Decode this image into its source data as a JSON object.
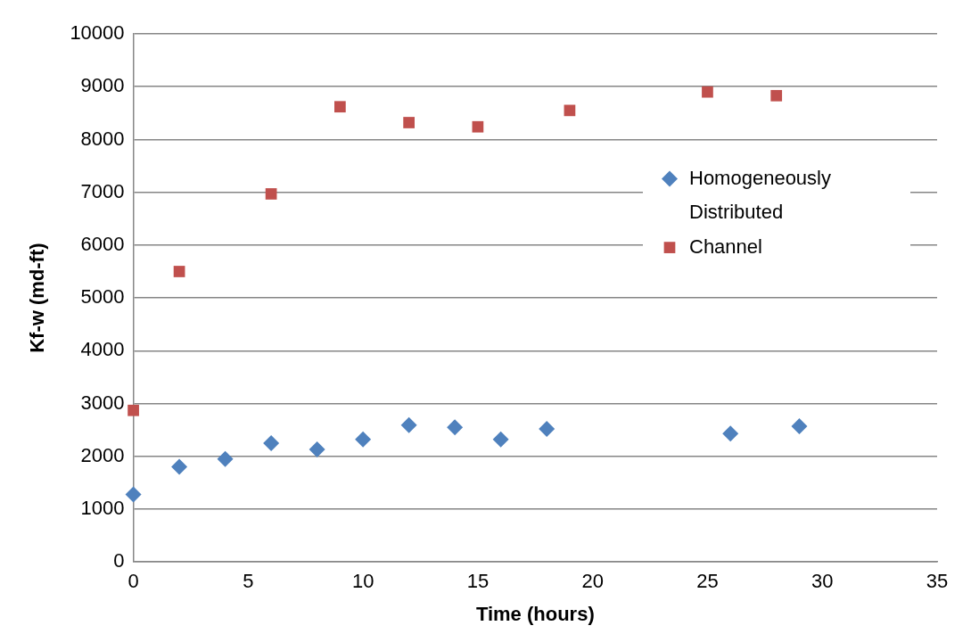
{
  "chart_data": {
    "type": "scatter",
    "xlabel": "Time (hours)",
    "ylabel": "Kf-w (md-ft)",
    "xlim": [
      0,
      35
    ],
    "xticks": [
      0,
      5,
      10,
      15,
      20,
      25,
      30,
      35
    ],
    "ylim": [
      0,
      10000
    ],
    "yticks": [
      0,
      1000,
      2000,
      3000,
      4000,
      5000,
      6000,
      7000,
      8000,
      9000,
      10000
    ],
    "grid": "y",
    "legend": "right",
    "series": [
      {
        "name": "Homogeneously Distributed",
        "color": "#4f81bd",
        "marker": "diamond",
        "x": [
          0,
          2,
          4,
          6,
          8,
          10,
          12,
          14,
          16,
          18,
          26,
          29
        ],
        "values": [
          1280,
          1800,
          1950,
          2250,
          2130,
          2320,
          2590,
          2550,
          2320,
          2520,
          2430,
          2570
        ]
      },
      {
        "name": "Channel",
        "color": "#c0504d",
        "marker": "square",
        "x": [
          0,
          2,
          6,
          9,
          12,
          15,
          19,
          25,
          28
        ],
        "values": [
          2870,
          5500,
          6970,
          8620,
          8320,
          8240,
          8550,
          8900,
          8830
        ]
      }
    ]
  }
}
